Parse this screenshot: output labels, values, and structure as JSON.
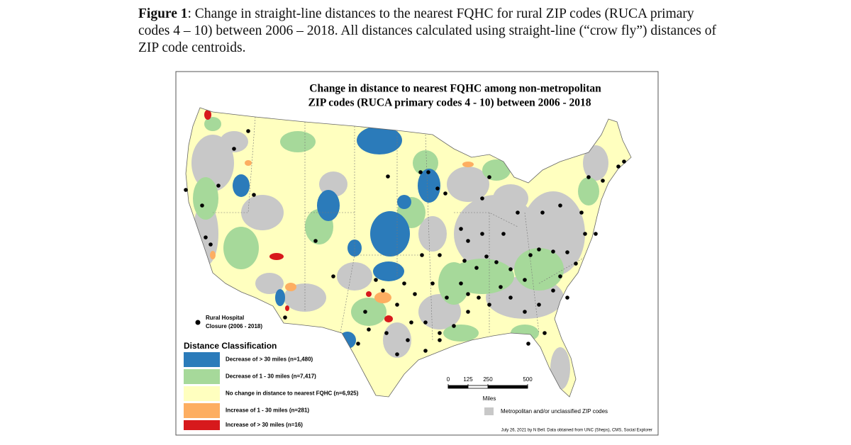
{
  "caption": {
    "label": "Figure 1",
    "text": ": Change in straight-line distances to the nearest FQHC for rural ZIP codes (RUCA primary codes 4 – 10) between 2006 – 2018. All distances calculated using straight-line (“crow fly”) distances of ZIP code centroids."
  },
  "map": {
    "title_lines": [
      "Change in distance to nearest FQHC among non-metropolitan",
      "ZIP codes (RUCA primary codes 4 - 10) between 2006 - 2018"
    ],
    "closure_legend": [
      "Rural Hospital",
      "Closure (2006 - 2018)"
    ],
    "legend": {
      "title": "Distance Classification",
      "items": [
        {
          "label": "Decrease of > 30 miles (n=1,480)",
          "color": "#2b7bba"
        },
        {
          "label": "Decrease of 1 - 30 miles (n=7,417)",
          "color": "#a6d99a"
        },
        {
          "label": "No change in distance to nearest FQHC (n=6,925)",
          "color": "#ffffbf"
        },
        {
          "label": "Increase of 1 - 30 miles (n=281)",
          "color": "#fdae61"
        },
        {
          "label": "Increase of > 30 miles (n=16)",
          "color": "#d7191c"
        }
      ]
    },
    "scale_bar": {
      "ticks": [
        0,
        125,
        250,
        500
      ],
      "unit": "Miles"
    },
    "metro_legend": {
      "label": "Metropolitan and/or unclassified ZIP codes",
      "color": "#c8c8c8"
    },
    "credit": "July 26, 2021 by N Bell. Data obtained from UNC (Sheps), CMS, Social Explorer"
  }
}
